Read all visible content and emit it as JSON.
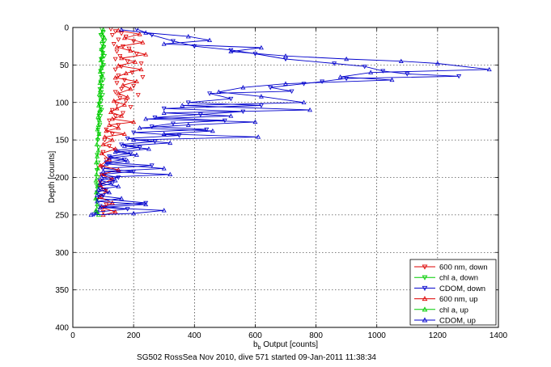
{
  "chart_data": {
    "type": "line",
    "xlabel_main": "b",
    "xlabel_sub": "b",
    "xlabel_rest": " Output [counts]",
    "ylabel": "Depth [counts]",
    "caption": "SG502 RossSea Nov 2010, dive 571 started 09-Jan-2011 11:38:34",
    "xlim": [
      0,
      1400
    ],
    "ylim": [
      0,
      400
    ],
    "y_reversed": true,
    "grid": true,
    "legend_position": "bottom-right",
    "xticks": [
      0,
      200,
      400,
      600,
      800,
      1000,
      1200,
      1400
    ],
    "yticks": [
      0,
      50,
      100,
      150,
      200,
      250,
      300,
      350,
      400
    ],
    "series": [
      {
        "name": "600 nm, down",
        "color": "#dd0000",
        "marker": "triangle-down",
        "style": "markers",
        "points": [
          [
            125,
            2
          ],
          [
            140,
            5
          ],
          [
            160,
            8
          ],
          [
            130,
            10
          ],
          [
            175,
            12
          ],
          [
            150,
            16
          ],
          [
            200,
            18
          ],
          [
            135,
            22
          ],
          [
            165,
            25
          ],
          [
            185,
            28
          ],
          [
            145,
            32
          ],
          [
            210,
            35
          ],
          [
            155,
            38
          ],
          [
            140,
            42
          ],
          [
            180,
            45
          ],
          [
            225,
            48
          ],
          [
            160,
            52
          ],
          [
            140,
            56
          ],
          [
            195,
            60
          ],
          [
            150,
            64
          ],
          [
            230,
            66
          ],
          [
            170,
            70
          ],
          [
            145,
            74
          ],
          [
            200,
            78
          ],
          [
            160,
            82
          ],
          [
            140,
            86
          ],
          [
            215,
            90
          ],
          [
            155,
            94
          ],
          [
            175,
            98
          ],
          [
            145,
            102
          ],
          [
            190,
            106
          ],
          [
            130,
            110
          ],
          [
            165,
            114
          ],
          [
            140,
            118
          ],
          [
            120,
            124
          ],
          [
            150,
            130
          ],
          [
            110,
            136
          ],
          [
            130,
            142
          ],
          [
            105,
            150
          ],
          [
            120,
            158
          ],
          [
            100,
            166
          ],
          [
            110,
            176
          ],
          [
            95,
            186
          ],
          [
            105,
            196
          ],
          [
            90,
            206
          ],
          [
            100,
            216
          ],
          [
            95,
            226
          ],
          [
            110,
            236
          ],
          [
            100,
            246
          ]
        ]
      },
      {
        "name": "chl a, down",
        "color": "#00cc00",
        "marker": "triangle-down",
        "style": "markers",
        "points": [
          [
            95,
            2
          ],
          [
            100,
            6
          ],
          [
            92,
            10
          ],
          [
            98,
            14
          ],
          [
            105,
            18
          ],
          [
            96,
            22
          ],
          [
            102,
            26
          ],
          [
            94,
            30
          ],
          [
            99,
            34
          ],
          [
            104,
            38
          ],
          [
            93,
            42
          ],
          [
            97,
            46
          ],
          [
            101,
            50
          ],
          [
            95,
            54
          ],
          [
            91,
            58
          ],
          [
            98,
            62
          ],
          [
            94,
            66
          ],
          [
            100,
            70
          ],
          [
            92,
            74
          ],
          [
            96,
            78
          ],
          [
            89,
            82
          ],
          [
            94,
            86
          ],
          [
            98,
            90
          ],
          [
            90,
            94
          ],
          [
            93,
            98
          ],
          [
            87,
            102
          ],
          [
            92,
            106
          ],
          [
            95,
            110
          ],
          [
            88,
            114
          ],
          [
            91,
            118
          ],
          [
            85,
            124
          ],
          [
            89,
            130
          ],
          [
            83,
            136
          ],
          [
            86,
            142
          ],
          [
            82,
            150
          ],
          [
            85,
            160
          ],
          [
            80,
            170
          ],
          [
            83,
            180
          ],
          [
            79,
            190
          ],
          [
            82,
            200
          ],
          [
            78,
            210
          ],
          [
            81,
            220
          ],
          [
            79,
            230
          ],
          [
            84,
            240
          ],
          [
            80,
            248
          ]
        ]
      },
      {
        "name": "CDOM, down",
        "color": "#0000cc",
        "marker": "triangle-down",
        "style": "markers-line",
        "points": [
          [
            210,
            2
          ],
          [
            260,
            10
          ],
          [
            330,
            18
          ],
          [
            400,
            25
          ],
          [
            520,
            30
          ],
          [
            600,
            35
          ],
          [
            700,
            42
          ],
          [
            860,
            48
          ],
          [
            960,
            52
          ],
          [
            1020,
            58
          ],
          [
            1100,
            62
          ],
          [
            1270,
            65
          ],
          [
            900,
            68
          ],
          [
            820,
            72
          ],
          [
            760,
            75
          ],
          [
            650,
            80
          ],
          [
            720,
            85
          ],
          [
            450,
            88
          ],
          [
            520,
            95
          ],
          [
            380,
            100
          ],
          [
            620,
            104
          ],
          [
            300,
            108
          ],
          [
            560,
            112
          ],
          [
            420,
            116
          ],
          [
            270,
            120
          ],
          [
            500,
            124
          ],
          [
            330,
            128
          ],
          [
            260,
            132
          ],
          [
            440,
            136
          ],
          [
            200,
            140
          ],
          [
            350,
            144
          ],
          [
            180,
            148
          ],
          [
            270,
            152
          ],
          [
            160,
            156
          ],
          [
            220,
            160
          ],
          [
            140,
            164
          ],
          [
            190,
            168
          ],
          [
            120,
            172
          ],
          [
            170,
            176
          ],
          [
            110,
            180
          ],
          [
            260,
            184
          ],
          [
            100,
            188
          ],
          [
            200,
            192
          ],
          [
            95,
            196
          ],
          [
            150,
            200
          ],
          [
            90,
            204
          ],
          [
            130,
            208
          ],
          [
            85,
            212
          ],
          [
            110,
            216
          ],
          [
            80,
            220
          ],
          [
            100,
            224
          ],
          [
            80,
            228
          ],
          [
            240,
            234
          ],
          [
            90,
            238
          ],
          [
            180,
            242
          ],
          [
            80,
            246
          ],
          [
            70,
            249
          ]
        ]
      },
      {
        "name": "600 nm, up",
        "color": "#dd0000",
        "marker": "triangle-up",
        "style": "markers-line",
        "points": [
          [
            150,
            4
          ],
          [
            220,
            9
          ],
          [
            170,
            14
          ],
          [
            230,
            20
          ],
          [
            145,
            26
          ],
          [
            190,
            31
          ],
          [
            240,
            36
          ],
          [
            160,
            41
          ],
          [
            205,
            46
          ],
          [
            150,
            51
          ],
          [
            225,
            56
          ],
          [
            175,
            61
          ],
          [
            140,
            67
          ],
          [
            210,
            72
          ],
          [
            165,
            77
          ],
          [
            190,
            82
          ],
          [
            150,
            88
          ],
          [
            180,
            93
          ],
          [
            135,
            98
          ],
          [
            170,
            103
          ],
          [
            145,
            108
          ],
          [
            125,
            113
          ],
          [
            160,
            118
          ],
          [
            130,
            122
          ],
          [
            200,
            126
          ],
          [
            120,
            130
          ],
          [
            150,
            134
          ],
          [
            110,
            138
          ],
          [
            170,
            142
          ],
          [
            105,
            146
          ],
          [
            130,
            150
          ],
          [
            100,
            156
          ],
          [
            140,
            162
          ],
          [
            95,
            168
          ],
          [
            120,
            176
          ],
          [
            90,
            184
          ],
          [
            150,
            190
          ],
          [
            95,
            196
          ],
          [
            130,
            202
          ],
          [
            90,
            210
          ],
          [
            110,
            218
          ],
          [
            88,
            226
          ],
          [
            130,
            234
          ],
          [
            95,
            240
          ],
          [
            140,
            246
          ],
          [
            100,
            250
          ]
        ]
      },
      {
        "name": "chl a, up",
        "color": "#00cc00",
        "marker": "triangle-up",
        "style": "markers-line",
        "points": [
          [
            100,
            3
          ],
          [
            95,
            8
          ],
          [
            103,
            13
          ],
          [
            97,
            18
          ],
          [
            101,
            24
          ],
          [
            94,
            29
          ],
          [
            99,
            34
          ],
          [
            96,
            39
          ],
          [
            92,
            44
          ],
          [
            98,
            49
          ],
          [
            94,
            54
          ],
          [
            90,
            59
          ],
          [
            96,
            64
          ],
          [
            92,
            69
          ],
          [
            89,
            74
          ],
          [
            94,
            79
          ],
          [
            90,
            84
          ],
          [
            87,
            89
          ],
          [
            92,
            94
          ],
          [
            88,
            99
          ],
          [
            85,
            104
          ],
          [
            90,
            109
          ],
          [
            86,
            114
          ],
          [
            83,
            119
          ],
          [
            88,
            124
          ],
          [
            84,
            130
          ],
          [
            81,
            136
          ],
          [
            86,
            142
          ],
          [
            82,
            148
          ],
          [
            79,
            156
          ],
          [
            84,
            164
          ],
          [
            80,
            172
          ],
          [
            77,
            180
          ],
          [
            82,
            188
          ],
          [
            78,
            196
          ],
          [
            76,
            204
          ],
          [
            81,
            212
          ],
          [
            77,
            220
          ],
          [
            75,
            228
          ],
          [
            80,
            236
          ],
          [
            76,
            244
          ],
          [
            85,
            250
          ]
        ]
      },
      {
        "name": "CDOM, up",
        "color": "#0000cc",
        "marker": "triangle-up",
        "style": "markers-line",
        "points": [
          [
            160,
            3
          ],
          [
            240,
            7
          ],
          [
            380,
            12
          ],
          [
            450,
            17
          ],
          [
            300,
            22
          ],
          [
            620,
            27
          ],
          [
            520,
            32
          ],
          [
            700,
            38
          ],
          [
            900,
            42
          ],
          [
            1080,
            45
          ],
          [
            1200,
            48
          ],
          [
            1370,
            56
          ],
          [
            980,
            60
          ],
          [
            880,
            66
          ],
          [
            1050,
            70
          ],
          [
            700,
            75
          ],
          [
            560,
            80
          ],
          [
            480,
            86
          ],
          [
            620,
            92
          ],
          [
            760,
            100
          ],
          [
            360,
            104
          ],
          [
            780,
            110
          ],
          [
            300,
            114
          ],
          [
            520,
            118
          ],
          [
            240,
            122
          ],
          [
            600,
            126
          ],
          [
            380,
            130
          ],
          [
            220,
            134
          ],
          [
            460,
            138
          ],
          [
            300,
            142
          ],
          [
            610,
            146
          ],
          [
            200,
            150
          ],
          [
            320,
            154
          ],
          [
            170,
            158
          ],
          [
            250,
            162
          ],
          [
            140,
            166
          ],
          [
            210,
            170
          ],
          [
            120,
            174
          ],
          [
            180,
            178
          ],
          [
            110,
            182
          ],
          [
            300,
            188
          ],
          [
            100,
            192
          ],
          [
            320,
            196
          ],
          [
            95,
            200
          ],
          [
            140,
            204
          ],
          [
            90,
            208
          ],
          [
            150,
            212
          ],
          [
            85,
            216
          ],
          [
            120,
            220
          ],
          [
            80,
            224
          ],
          [
            160,
            228
          ],
          [
            80,
            232
          ],
          [
            240,
            236
          ],
          [
            90,
            240
          ],
          [
            300,
            244
          ],
          [
            200,
            248
          ],
          [
            60,
            250
          ]
        ]
      }
    ]
  }
}
